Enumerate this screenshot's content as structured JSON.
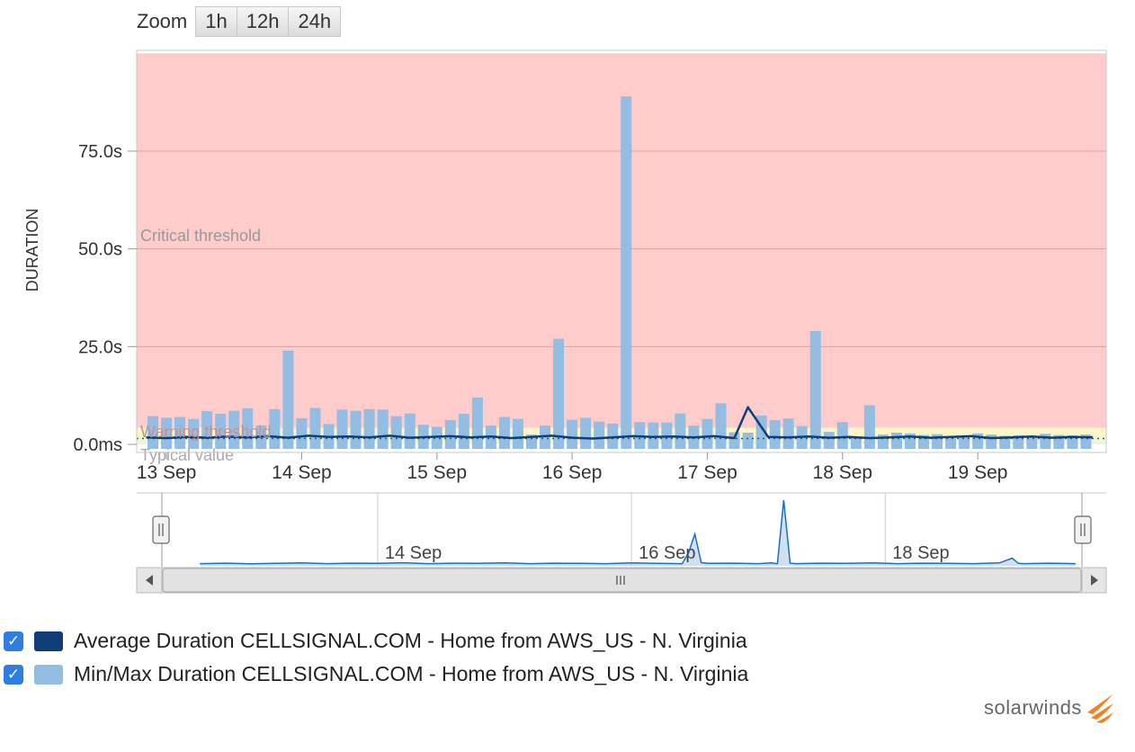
{
  "zoom": {
    "label": "Zoom",
    "buttons": [
      "1h",
      "12h",
      "24h"
    ]
  },
  "chart_data": {
    "type": "bar",
    "ylabel": "DURATION",
    "ylim": [
      0,
      100
    ],
    "y_ticks": [
      {
        "value": 0,
        "label": "0.0ms"
      },
      {
        "value": 25,
        "label": "25.0s"
      },
      {
        "value": 50,
        "label": "50.0s"
      },
      {
        "value": 75,
        "label": "75.0s"
      }
    ],
    "x_ticks": [
      "13 Sep",
      "14 Sep",
      "15 Sep",
      "16 Sep",
      "17 Sep",
      "18 Sep",
      "19 Sep"
    ],
    "x_range_days": [
      12.78,
      19.95
    ],
    "bands": [
      {
        "name": "Critical threshold",
        "from": 4.2,
        "to": 100,
        "color": "#ffcccc"
      },
      {
        "name": "Warning threshold",
        "from": 2.0,
        "to": 4.2,
        "color": "#fdf6c8"
      },
      {
        "name": "Typical value",
        "from": 0,
        "to": 2.0,
        "color": "#eef6d8"
      }
    ],
    "band_labels": {
      "critical": "Critical threshold",
      "warning": "Warning threshold",
      "typical": "Typical value"
    },
    "typical_value": 1.5,
    "series": [
      {
        "name": "Min/Max Duration CELLSIGNAL.COM - Home from AWS_US - N. Virginia",
        "kind": "bar",
        "color": "#93bde3",
        "x": [
          12.9,
          13.0,
          13.1,
          13.2,
          13.3,
          13.4,
          13.5,
          13.6,
          13.7,
          13.8,
          13.9,
          14.0,
          14.1,
          14.2,
          14.3,
          14.4,
          14.5,
          14.6,
          14.7,
          14.8,
          14.9,
          15.0,
          15.1,
          15.2,
          15.3,
          15.4,
          15.5,
          15.6,
          15.7,
          15.8,
          15.9,
          16.0,
          16.1,
          16.2,
          16.3,
          16.4,
          16.5,
          16.6,
          16.7,
          16.8,
          16.9,
          17.0,
          17.1,
          17.2,
          17.3,
          17.4,
          17.5,
          17.6,
          17.7,
          17.8,
          17.9,
          18.0,
          18.1,
          18.2,
          18.3,
          18.4,
          18.5,
          18.6,
          18.7,
          18.8,
          18.9,
          19.0,
          19.1,
          19.2,
          19.3,
          19.4,
          19.5,
          19.6,
          19.7,
          19.8
        ],
        "values": [
          7.2,
          6.8,
          7.0,
          6.5,
          8.5,
          7.8,
          8.6,
          9.2,
          4.8,
          9.0,
          24.0,
          6.7,
          9.3,
          5.2,
          8.9,
          8.6,
          9.0,
          8.9,
          7.2,
          7.9,
          5.0,
          4.5,
          6.2,
          7.8,
          12.0,
          4.8,
          7.0,
          6.5,
          2.5,
          4.8,
          27.0,
          6.3,
          6.8,
          5.8,
          5.3,
          89.0,
          5.7,
          5.6,
          5.6,
          7.9,
          4.8,
          6.5,
          10.5,
          3.1,
          3.0,
          7.4,
          6.2,
          6.6,
          4.7,
          29.0,
          3.2,
          5.7,
          2.0,
          10.0,
          2.5,
          3.0,
          2.8,
          2.4,
          2.6,
          2.0,
          2.2,
          2.8,
          2.5,
          2.2,
          2.3,
          2.0,
          2.7,
          2.4,
          2.3,
          2.5
        ]
      },
      {
        "name": "Average Duration CELLSIGNAL.COM - Home from AWS_US - N. Virginia",
        "kind": "line",
        "color": "#0d3e78",
        "x": [
          12.85,
          13.0,
          13.15,
          13.3,
          13.45,
          13.6,
          13.75,
          13.9,
          14.05,
          14.2,
          14.35,
          14.5,
          14.65,
          14.8,
          14.95,
          15.1,
          15.25,
          15.4,
          15.55,
          15.7,
          15.85,
          16.0,
          16.15,
          16.3,
          16.45,
          16.6,
          16.75,
          16.9,
          17.05,
          17.2,
          17.3,
          17.45,
          17.6,
          17.75,
          17.9,
          18.05,
          18.2,
          18.35,
          18.5,
          18.65,
          18.8,
          18.95,
          19.1,
          19.25,
          19.4,
          19.55,
          19.7,
          19.85
        ],
        "values": [
          1.8,
          1.6,
          1.9,
          1.7,
          2.0,
          1.8,
          2.1,
          1.7,
          2.2,
          1.9,
          2.0,
          1.8,
          2.2,
          1.7,
          1.9,
          2.1,
          1.8,
          2.0,
          1.6,
          1.9,
          2.2,
          1.7,
          1.5,
          1.8,
          2.1,
          1.9,
          2.0,
          1.8,
          2.1,
          1.6,
          9.5,
          1.9,
          1.8,
          2.0,
          1.7,
          1.9,
          1.6,
          1.8,
          2.0,
          1.7,
          1.9,
          2.1,
          1.6,
          1.8,
          2.0,
          1.7,
          1.9,
          1.8
        ]
      }
    ],
    "navigator": {
      "x_ticks": [
        "14 Sep",
        "16 Sep",
        "18 Sep"
      ],
      "x_range_days": [
        12.3,
        19.55
      ],
      "x": [
        12.6,
        12.8,
        13.0,
        13.2,
        13.4,
        13.6,
        13.8,
        14.0,
        14.2,
        14.4,
        14.6,
        14.8,
        15.0,
        15.2,
        15.4,
        15.6,
        15.8,
        16.0,
        16.2,
        16.4,
        16.45,
        16.5,
        16.55,
        16.6,
        16.8,
        17.0,
        17.1,
        17.15,
        17.2,
        17.25,
        17.3,
        17.5,
        17.7,
        17.9,
        18.1,
        18.3,
        18.5,
        18.7,
        18.9,
        19.0,
        19.05,
        19.1,
        19.3,
        19.5
      ],
      "values": [
        1.0,
        1.2,
        0.9,
        1.1,
        1.3,
        1.0,
        1.2,
        1.1,
        1.4,
        1.0,
        1.2,
        1.1,
        1.3,
        1.0,
        1.2,
        1.1,
        1.0,
        1.3,
        1.1,
        1.0,
        6.0,
        14.5,
        1.5,
        1.1,
        1.2,
        1.0,
        1.3,
        1.0,
        30.0,
        1.2,
        1.0,
        1.2,
        1.1,
        1.3,
        1.0,
        1.2,
        1.1,
        1.0,
        1.3,
        3.5,
        1.1,
        1.0,
        1.2,
        1.0
      ]
    }
  },
  "legend": {
    "items": [
      {
        "label": "Average Duration CELLSIGNAL.COM - Home from AWS_US - N. Virginia",
        "color": "#0d3e78",
        "checked": true
      },
      {
        "label": "Min/Max Duration CELLSIGNAL.COM - Home from AWS_US - N. Virginia",
        "color": "#93bde3",
        "checked": true
      }
    ]
  },
  "brand": {
    "text": "solarwinds",
    "logo_color": "#f58220"
  },
  "scrollbar": {
    "left_arrow": "◂",
    "right_arrow": "▸",
    "grip": "III",
    "handle_grip": "||"
  }
}
